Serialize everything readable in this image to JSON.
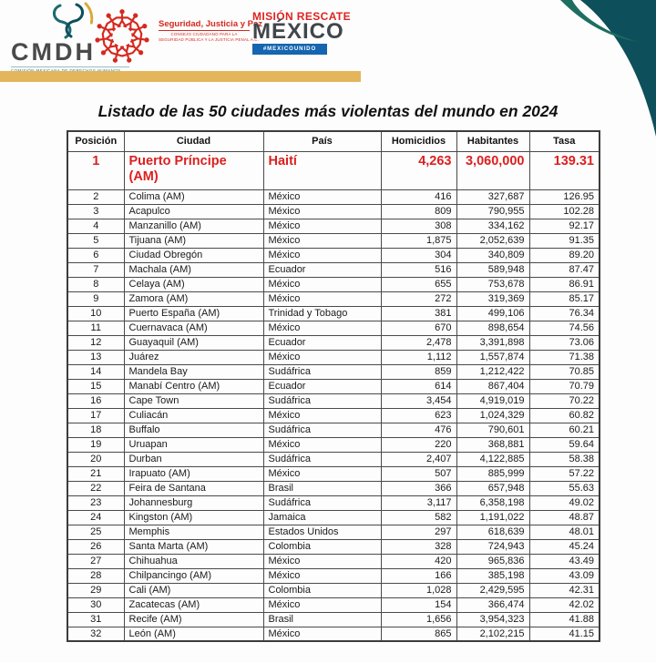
{
  "colors": {
    "accent_red": "#dd1f1f",
    "teal_dark": "#0d505c",
    "teal_sliver": "#1d6e60",
    "gold_bar": "#e3b65c",
    "hashtag_blue": "#1565b0"
  },
  "header": {
    "cmdh": {
      "name": "CMDH",
      "tagline": "COMISIÓN MEXICANA DE DERECHOS HUMANOS"
    },
    "consejo": {
      "title": "Seguridad, Justicia y Paz",
      "subtitle_line1": "CONSEJO CIUDADANO PARA LA",
      "subtitle_line2": "SEGURIDAD PÚBLICA Y LA JUSTICIA PENAL A.C."
    },
    "mision": {
      "line1": "MISIÓN RESCATE",
      "line2": "MÉXICO",
      "hashtag": "#MEXICOUNIDO"
    }
  },
  "title": "Listado de las 50 ciudades más violentas del mundo en 2024",
  "table": {
    "columns": [
      "Posición",
      "Ciudad",
      "País",
      "Homicidios",
      "Habitantes",
      "Tasa"
    ],
    "rows": [
      {
        "posicion": "1",
        "ciudad": "Puerto Príncipe (AM)",
        "pais": "Haití",
        "homicidios": "4,263",
        "habitantes": "3,060,000",
        "tasa": "139.31",
        "highlight": true
      },
      {
        "posicion": "2",
        "ciudad": "Colima (AM)",
        "pais": "México",
        "homicidios": "416",
        "habitantes": "327,687",
        "tasa": "126.95"
      },
      {
        "posicion": "3",
        "ciudad": "Acapulco",
        "pais": "México",
        "homicidios": "809",
        "habitantes": "790,955",
        "tasa": "102.28"
      },
      {
        "posicion": "4",
        "ciudad": "Manzanillo (AM)",
        "pais": "México",
        "homicidios": "308",
        "habitantes": "334,162",
        "tasa": "92.17"
      },
      {
        "posicion": "5",
        "ciudad": "Tijuana (AM)",
        "pais": "México",
        "homicidios": "1,875",
        "habitantes": "2,052,639",
        "tasa": "91.35"
      },
      {
        "posicion": "6",
        "ciudad": "Ciudad Obregón",
        "pais": "México",
        "homicidios": "304",
        "habitantes": "340,809",
        "tasa": "89.20"
      },
      {
        "posicion": "7",
        "ciudad": "Machala (AM)",
        "pais": "Ecuador",
        "homicidios": "516",
        "habitantes": "589,948",
        "tasa": "87.47"
      },
      {
        "posicion": "8",
        "ciudad": "Celaya (AM)",
        "pais": "México",
        "homicidios": "655",
        "habitantes": "753,678",
        "tasa": "86.91"
      },
      {
        "posicion": "9",
        "ciudad": "Zamora (AM)",
        "pais": "México",
        "homicidios": "272",
        "habitantes": "319,369",
        "tasa": "85.17"
      },
      {
        "posicion": "10",
        "ciudad": "Puerto España (AM)",
        "pais": "Trinidad y Tobago",
        "homicidios": "381",
        "habitantes": "499,106",
        "tasa": "76.34"
      },
      {
        "posicion": "11",
        "ciudad": "Cuernavaca (AM)",
        "pais": "México",
        "homicidios": "670",
        "habitantes": "898,654",
        "tasa": "74.56"
      },
      {
        "posicion": "12",
        "ciudad": "Guayaquil (AM)",
        "pais": "Ecuador",
        "homicidios": "2,478",
        "habitantes": "3,391,898",
        "tasa": "73.06"
      },
      {
        "posicion": "13",
        "ciudad": "Juárez",
        "pais": "México",
        "homicidios": "1,112",
        "habitantes": "1,557,874",
        "tasa": "71.38"
      },
      {
        "posicion": "14",
        "ciudad": "Mandela Bay",
        "pais": "Sudáfrica",
        "homicidios": "859",
        "habitantes": "1,212,422",
        "tasa": "70.85"
      },
      {
        "posicion": "15",
        "ciudad": "Manabí Centro (AM)",
        "pais": "Ecuador",
        "homicidios": "614",
        "habitantes": "867,404",
        "tasa": "70.79"
      },
      {
        "posicion": "16",
        "ciudad": "Cape Town",
        "pais": "Sudáfrica",
        "homicidios": "3,454",
        "habitantes": "4,919,019",
        "tasa": "70.22"
      },
      {
        "posicion": "17",
        "ciudad": "Culiacán",
        "pais": "México",
        "homicidios": "623",
        "habitantes": "1,024,329",
        "tasa": "60.82"
      },
      {
        "posicion": "18",
        "ciudad": "Buffalo",
        "pais": "Sudáfrica",
        "homicidios": "476",
        "habitantes": "790,601",
        "tasa": "60.21"
      },
      {
        "posicion": "19",
        "ciudad": "Uruapan",
        "pais": "México",
        "homicidios": "220",
        "habitantes": "368,881",
        "tasa": "59.64"
      },
      {
        "posicion": "20",
        "ciudad": "Durban",
        "pais": "Sudáfrica",
        "homicidios": "2,407",
        "habitantes": "4,122,885",
        "tasa": "58.38"
      },
      {
        "posicion": "21",
        "ciudad": "Irapuato (AM)",
        "pais": "México",
        "homicidios": "507",
        "habitantes": "885,999",
        "tasa": "57.22"
      },
      {
        "posicion": "22",
        "ciudad": "Feira de Santana",
        "pais": "Brasil",
        "homicidios": "366",
        "habitantes": "657,948",
        "tasa": "55.63"
      },
      {
        "posicion": "23",
        "ciudad": "Johannesburg",
        "pais": "Sudáfrica",
        "homicidios": "3,117",
        "habitantes": "6,358,198",
        "tasa": "49.02"
      },
      {
        "posicion": "24",
        "ciudad": "Kingston (AM)",
        "pais": "Jamaica",
        "homicidios": "582",
        "habitantes": "1,191,022",
        "tasa": "48.87"
      },
      {
        "posicion": "25",
        "ciudad": "Memphis",
        "pais": "Estados Unidos",
        "homicidios": "297",
        "habitantes": "618,639",
        "tasa": "48.01"
      },
      {
        "posicion": "26",
        "ciudad": "Santa Marta (AM)",
        "pais": "Colombia",
        "homicidios": "328",
        "habitantes": "724,943",
        "tasa": "45.24"
      },
      {
        "posicion": "27",
        "ciudad": "Chihuahua",
        "pais": "México",
        "homicidios": "420",
        "habitantes": "965,836",
        "tasa": "43.49"
      },
      {
        "posicion": "28",
        "ciudad": "Chilpancingo (AM)",
        "pais": "México",
        "homicidios": "166",
        "habitantes": "385,198",
        "tasa": "43.09"
      },
      {
        "posicion": "29",
        "ciudad": "Cali (AM)",
        "pais": "Colombia",
        "homicidios": "1,028",
        "habitantes": "2,429,595",
        "tasa": "42.31"
      },
      {
        "posicion": "30",
        "ciudad": "Zacatecas (AM)",
        "pais": "México",
        "homicidios": "154",
        "habitantes": "366,474",
        "tasa": "42.02"
      },
      {
        "posicion": "31",
        "ciudad": "Recife (AM)",
        "pais": "Brasil",
        "homicidios": "1,656",
        "habitantes": "3,954,323",
        "tasa": "41.88"
      },
      {
        "posicion": "32",
        "ciudad": "León (AM)",
        "pais": "México",
        "homicidios": "865",
        "habitantes": "2,102,215",
        "tasa": "41.15"
      }
    ]
  }
}
